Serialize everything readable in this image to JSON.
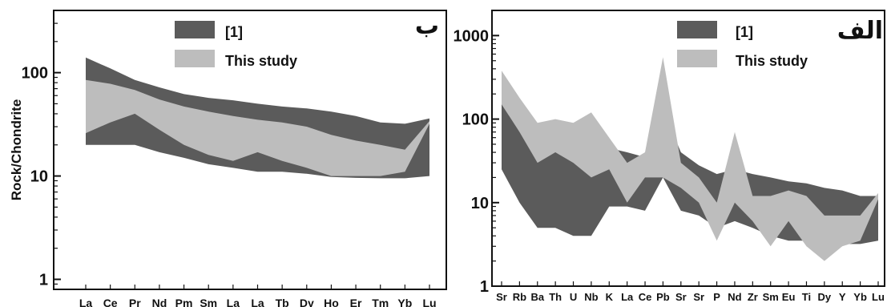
{
  "chart_data": [
    {
      "type": "area",
      "panel": "left",
      "title": "ب",
      "ylabel": "Rock/Chondrite",
      "yscale": "log",
      "ylim": [
        0.8,
        400
      ],
      "yticks": [
        1,
        10,
        100
      ],
      "categories": [
        "La",
        "Ce",
        "Pr",
        "Nd",
        "Pm",
        "Sm",
        "La",
        "La",
        "Tb",
        "Dy",
        "Ho",
        "Er",
        "Tm",
        "Yb",
        "Lu"
      ],
      "legend": [
        "[1]",
        "This study"
      ],
      "colors": {
        "ref": "#5b5b5b",
        "study": "#bdbdbd"
      },
      "series": [
        {
          "name": "[1]",
          "upper": [
            140,
            110,
            85,
            72,
            62,
            57,
            54,
            50,
            47,
            45,
            42,
            38,
            33,
            32,
            36
          ],
          "lower": [
            20,
            20,
            20,
            17,
            15,
            13,
            12,
            11,
            11,
            10.5,
            9.8,
            9.6,
            9.5,
            9.5,
            10
          ]
        },
        {
          "name": "This study",
          "upper": [
            85,
            78,
            68,
            55,
            47,
            42,
            38,
            35,
            33,
            30,
            25,
            22,
            20,
            18,
            34
          ],
          "lower": [
            26,
            33,
            40,
            28,
            20,
            16,
            14,
            17,
            14,
            12,
            10,
            10,
            10,
            11,
            32
          ]
        }
      ]
    },
    {
      "type": "area",
      "panel": "right",
      "title": "الف",
      "yscale": "log",
      "ylim": [
        1,
        2000
      ],
      "yticks": [
        1,
        10,
        100,
        1000
      ],
      "categories": [
        "Sr",
        "Rb",
        "Ba",
        "Th",
        "U",
        "Nb",
        "K",
        "La",
        "Ce",
        "Pb",
        "Sr",
        "Sr",
        "P",
        "Nd",
        "Zr",
        "Sm",
        "Eu",
        "Ti",
        "Dy",
        "Y",
        "Yb",
        "Lu"
      ],
      "legend": [
        "[1]",
        "This study"
      ],
      "colors": {
        "ref": "#5b5b5b",
        "study": "#bdbdbd"
      },
      "series": [
        {
          "name": "[1]",
          "upper": [
            170,
            100,
            60,
            50,
            45,
            50,
            45,
            40,
            35,
            130,
            40,
            28,
            22,
            25,
            22,
            20,
            18,
            17,
            15,
            14,
            12,
            12
          ],
          "lower": [
            25,
            10,
            5,
            5,
            4,
            4,
            9,
            9,
            8,
            20,
            8,
            7,
            5,
            6,
            5,
            4,
            3.5,
            3.5,
            3.5,
            3.2,
            3.2,
            3.5
          ]
        },
        {
          "name": "This study",
          "upper": [
            380,
            180,
            90,
            100,
            90,
            120,
            60,
            30,
            40,
            550,
            30,
            20,
            10,
            70,
            12,
            12,
            14,
            12,
            7,
            7,
            7,
            13
          ],
          "lower": [
            150,
            70,
            30,
            40,
            30,
            20,
            25,
            10,
            20,
            20,
            15,
            10,
            3.5,
            10,
            6,
            3,
            6,
            3,
            2,
            3,
            3.5,
            11
          ]
        }
      ]
    }
  ]
}
